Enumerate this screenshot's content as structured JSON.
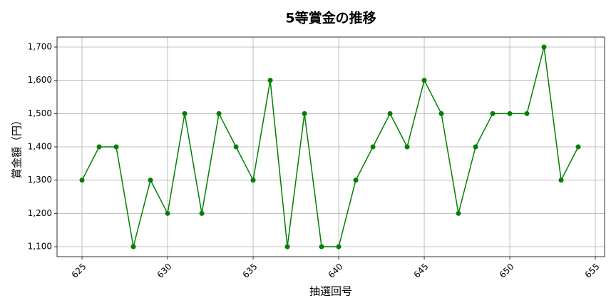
{
  "chart_data": {
    "type": "line",
    "title": "5等賞金の推移",
    "x_label": "抽選回号",
    "y_label": "賞金額（円）",
    "x": [
      625,
      626,
      627,
      628,
      629,
      630,
      631,
      632,
      633,
      634,
      635,
      636,
      637,
      638,
      639,
      640,
      641,
      642,
      643,
      644,
      645,
      646,
      647,
      648,
      649,
      650,
      651,
      652,
      653,
      654
    ],
    "series": [
      {
        "color": "#008000",
        "values": [
          1300,
          1400,
          1400,
          1100,
          1300,
          1200,
          1500,
          1200,
          1500,
          1400,
          1300,
          1600,
          1100,
          1500,
          1100,
          1100,
          1300,
          1400,
          1500,
          1400,
          1600,
          1500,
          1200,
          1400,
          1500,
          1500,
          1500,
          1700,
          1300,
          1400
        ]
      }
    ],
    "xlim": [
      623.54,
      655.54
    ],
    "ylim": [
      1070,
      1730
    ],
    "xticks": [
      625,
      630,
      635,
      640,
      645,
      650,
      655
    ],
    "yticks": [
      {
        "value": 1100,
        "label": "1,100"
      },
      {
        "value": 1200,
        "label": "1,200"
      },
      {
        "value": 1300,
        "label": "1,300"
      },
      {
        "value": 1400,
        "label": "1,400"
      },
      {
        "value": 1500,
        "label": "1,500"
      },
      {
        "value": 1600,
        "label": "1,600"
      },
      {
        "value": 1700,
        "label": "1,700"
      }
    ],
    "grid": true
  }
}
